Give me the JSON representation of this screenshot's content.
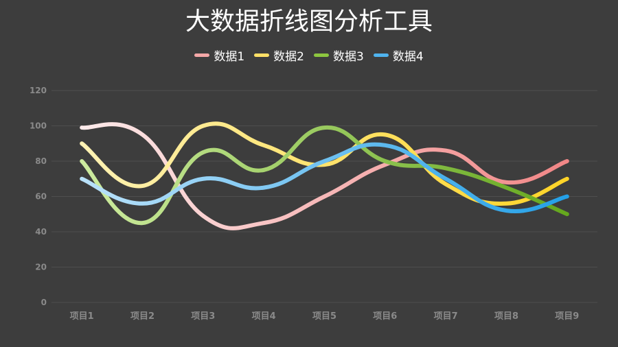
{
  "chart_data": {
    "type": "line",
    "title": "大数据折线图分析工具",
    "categories": [
      "项目1",
      "项目2",
      "项目3",
      "项目4",
      "项目5",
      "项目6",
      "项目7",
      "项目8",
      "项目9"
    ],
    "ylim": [
      0,
      120
    ],
    "yticks": [
      0,
      20,
      40,
      60,
      80,
      100,
      120
    ],
    "grid": true,
    "legend_position": "top-center",
    "smooth": true,
    "series": [
      {
        "name": "数据1",
        "values": [
          99,
          95,
          49,
          45,
          60,
          78,
          86,
          68,
          80
        ],
        "color_start": "#fdf0f0",
        "color_end": "#f08080",
        "legend_color": "#f4a7a7"
      },
      {
        "name": "数据2",
        "values": [
          90,
          66,
          100,
          89,
          78,
          95,
          67,
          56,
          70
        ],
        "color_start": "#fff4bd",
        "color_end": "#ffd21e",
        "legend_color": "#ffe066"
      },
      {
        "name": "数据3",
        "values": [
          80,
          45,
          85,
          75,
          99,
          80,
          76,
          65,
          50
        ],
        "color_start": "#d4f0a8",
        "color_end": "#5ea315",
        "legend_color": "#8dc63f"
      },
      {
        "name": "数据4",
        "values": [
          70,
          56,
          70,
          65,
          80,
          89,
          70,
          52,
          60
        ],
        "color_start": "#c4e6fb",
        "color_end": "#1a9ce6",
        "legend_color": "#4fb3ee"
      }
    ]
  }
}
